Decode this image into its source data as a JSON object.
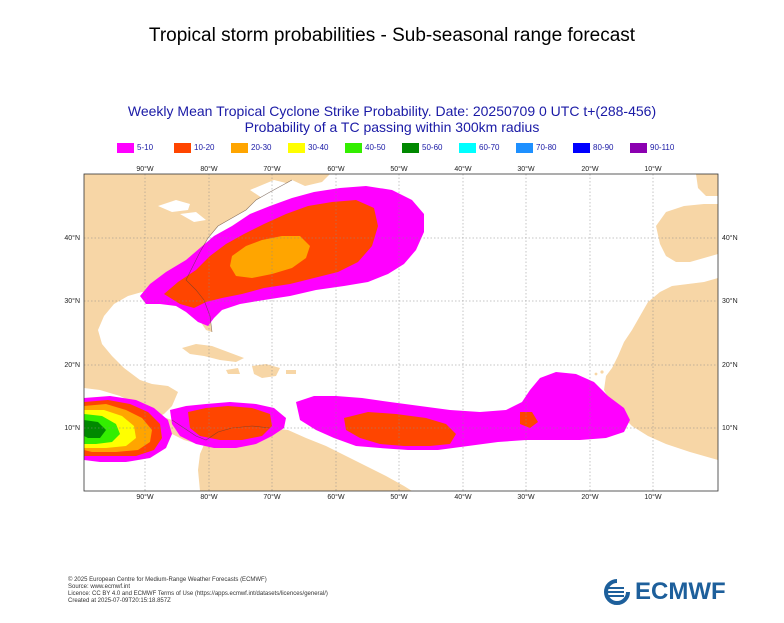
{
  "page_title": "Tropical storm probabilities - Sub-seasonal range forecast",
  "chart": {
    "title_line1": "Weekly Mean Tropical Cyclone Strike Probability. Date: 20250709  0 UTC   t+(288-456)",
    "title_line2": "Probability of a TC passing within  300km radius"
  },
  "legend": [
    {
      "label": "5-10",
      "color": "#ff00ff"
    },
    {
      "label": "10-20",
      "color": "#ff4500"
    },
    {
      "label": "20-30",
      "color": "#ffa500"
    },
    {
      "label": "30-40",
      "color": "#ffff00"
    },
    {
      "label": "40-50",
      "color": "#33ee00"
    },
    {
      "label": "50-60",
      "color": "#008800"
    },
    {
      "label": "60-70",
      "color": "#00ffff"
    },
    {
      "label": "70-80",
      "color": "#1e90ff"
    },
    {
      "label": "80-90",
      "color": "#0000ff"
    },
    {
      "label": "90-110",
      "color": "#8b00b0"
    }
  ],
  "map": {
    "lon_labels": [
      "90°W",
      "80°W",
      "70°W",
      "60°W",
      "50°W",
      "40°W",
      "30°W",
      "20°W",
      "10°W"
    ],
    "lat_labels": [
      "40°N",
      "30°N",
      "20°N",
      "10°N"
    ],
    "land_color": "#f7d6a6",
    "ocean_color": "#ffffff"
  },
  "footer": {
    "line1": "© 2025 European Centre for Medium-Range Weather Forecasts (ECMWF)",
    "line2": "Source: www.ecmwf.int",
    "line3": "Licence: CC BY 4.0 and ECMWF Terms of Use (https://apps.ecmwf.int/datasets/licences/general/)",
    "line4": "Created at 2025-07-09T20:15:18.857Z"
  },
  "logo": {
    "text": "ECMWF",
    "color": "#1d5f9b"
  }
}
